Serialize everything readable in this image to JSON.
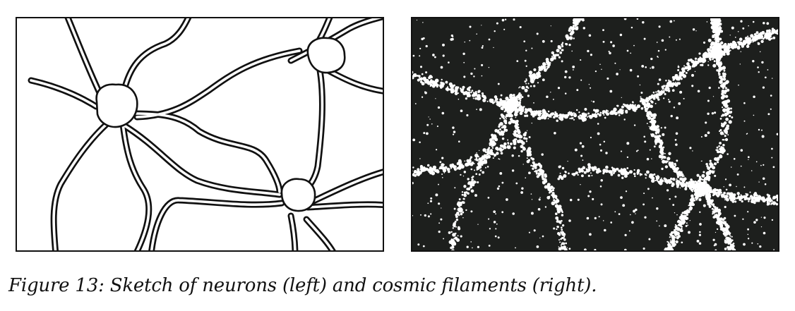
{
  "figure": {
    "caption": "Figure 13: Sketch of neurons (left) and cosmic filaments (right).",
    "left_panel": {
      "subject": "neurons-sketch",
      "background_color": "#ffffff",
      "line_color": "#111111"
    },
    "right_panel": {
      "subject": "cosmic-filaments",
      "background_color": "#1d1f1d",
      "dot_color": "#ffffff"
    }
  }
}
